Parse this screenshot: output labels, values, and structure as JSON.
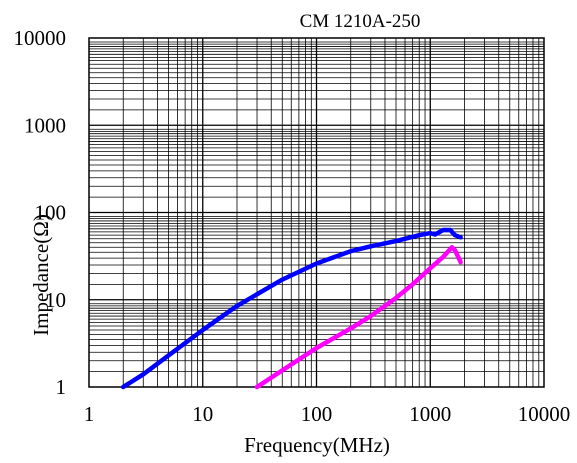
{
  "chart_data": {
    "type": "line",
    "title": "CM 1210A-250",
    "xlabel": "Frequency(MHz)",
    "ylabel": "Impedance(Ω)",
    "x_scale": "log",
    "y_scale": "log",
    "xlim": [
      1,
      10000
    ],
    "ylim": [
      1,
      10000
    ],
    "x_ticks": [
      "1",
      "10",
      "100",
      "1000",
      "10000"
    ],
    "y_ticks": [
      "1",
      "10",
      "100",
      "1000",
      "10000"
    ],
    "grid": true,
    "series": [
      {
        "color": "#0000ff",
        "points": [
          [
            2,
            1
          ],
          [
            3,
            1.4
          ],
          [
            5,
            2.3
          ],
          [
            10,
            4.5
          ],
          [
            20,
            8.5
          ],
          [
            50,
            17
          ],
          [
            100,
            26
          ],
          [
            200,
            36
          ],
          [
            300,
            41
          ],
          [
            500,
            47
          ],
          [
            800,
            55
          ],
          [
            1000,
            58
          ],
          [
            1100,
            56
          ],
          [
            1300,
            63
          ],
          [
            1500,
            63
          ],
          [
            1650,
            55
          ],
          [
            1850,
            52
          ]
        ]
      },
      {
        "color": "#ff00ff",
        "points": [
          [
            30,
            1
          ],
          [
            50,
            1.55
          ],
          [
            100,
            2.8
          ],
          [
            200,
            4.7
          ],
          [
            300,
            6.5
          ],
          [
            500,
            10.5
          ],
          [
            700,
            15
          ],
          [
            1000,
            23
          ],
          [
            1300,
            31
          ],
          [
            1550,
            40
          ],
          [
            1650,
            37
          ],
          [
            1850,
            27
          ]
        ]
      }
    ]
  }
}
